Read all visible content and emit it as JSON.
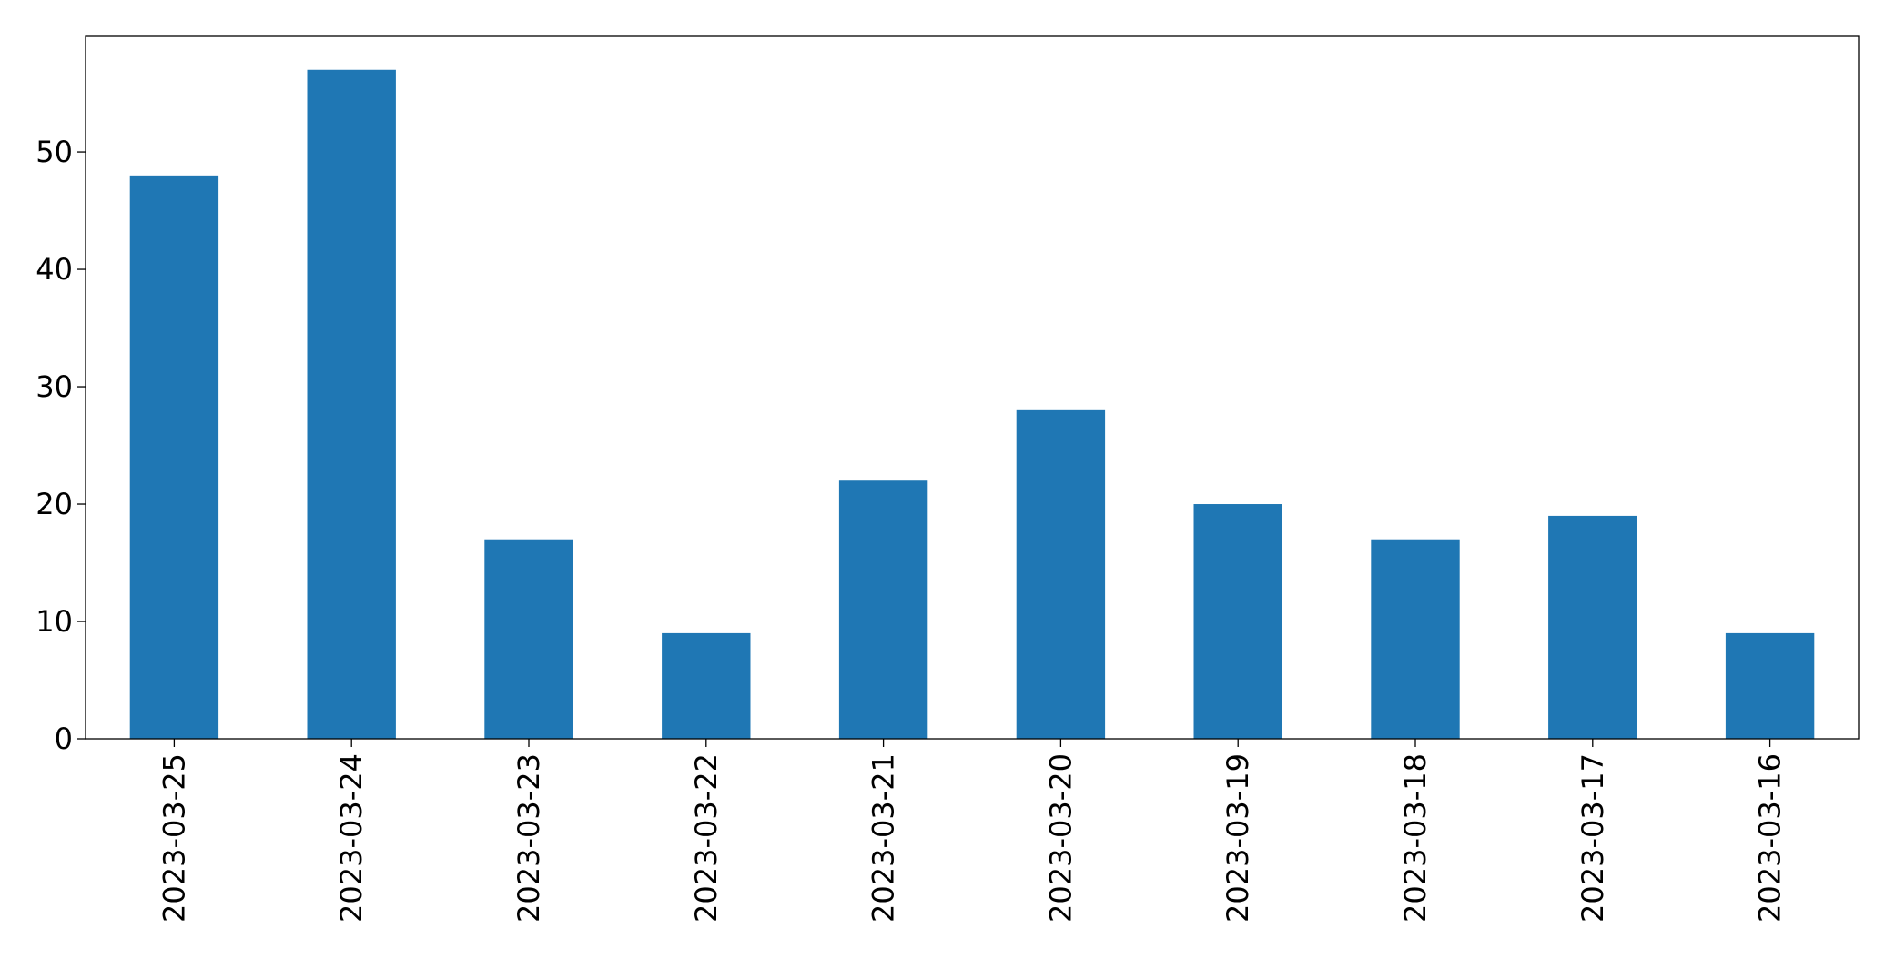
{
  "chart_data": {
    "type": "bar",
    "categories": [
      "2023-03-25",
      "2023-03-24",
      "2023-03-23",
      "2023-03-22",
      "2023-03-21",
      "2023-03-20",
      "2023-03-19",
      "2023-03-18",
      "2023-03-17",
      "2023-03-16"
    ],
    "values": [
      48,
      57,
      17,
      9,
      22,
      28,
      20,
      17,
      19,
      9
    ],
    "color": "#1f77b4",
    "ylim": [
      0,
      59.85
    ],
    "yticks": [
      0,
      10,
      20,
      30,
      40,
      50
    ],
    "grid": false
  }
}
